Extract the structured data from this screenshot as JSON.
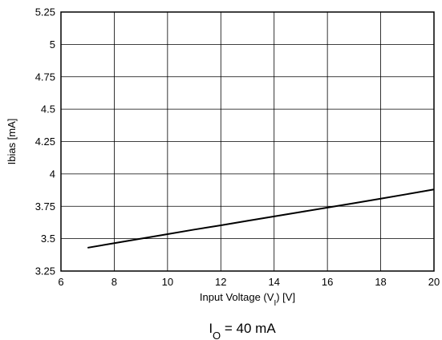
{
  "chart_data": {
    "type": "line",
    "xlabel": {
      "text": "Input Voltage (V",
      "subscript": "I",
      "suffix": ") [V]"
    },
    "ylabel": "Ibias [mA]",
    "caption": {
      "text": "I",
      "subscript": "O",
      "suffix": " = 40 mA"
    },
    "xlim": [
      6,
      20
    ],
    "ylim": [
      3.25,
      5.25
    ],
    "xticks": [
      "6",
      "8",
      "10",
      "12",
      "14",
      "16",
      "18",
      "20"
    ],
    "yticks": [
      "3.25",
      "3.5",
      "3.75",
      "4",
      "4.25",
      "4.5",
      "4.75",
      "5",
      "5.25"
    ],
    "grid": true,
    "legend": "none",
    "series": [
      {
        "x": [
          7,
          8,
          9,
          10,
          11,
          12,
          13,
          14,
          15,
          16,
          17,
          18,
          19,
          20
        ],
        "y": [
          3.43,
          3.465,
          3.5,
          3.535,
          3.57,
          3.603,
          3.638,
          3.672,
          3.706,
          3.74,
          3.774,
          3.809,
          3.844,
          3.88
        ],
        "color": "#000000"
      }
    ]
  }
}
